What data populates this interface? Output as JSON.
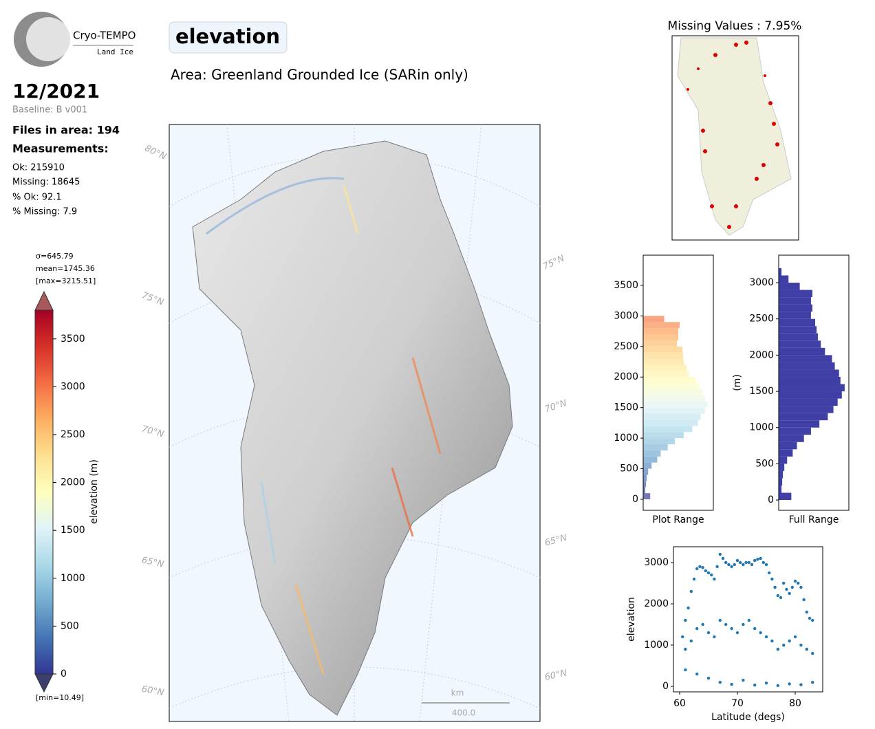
{
  "logo": {
    "name": "Cryo-TEMPO",
    "sub": "Land Ice"
  },
  "header": {
    "title": "elevation",
    "area": "Area: Greenland Grounded Ice (SARin only)",
    "date": "12/2021",
    "baseline": "Baseline: B v001"
  },
  "stats": {
    "files": "Files in area: 194",
    "measurements": "Measurements:",
    "lines": [
      "Ok: 215910",
      "Missing: 18645",
      "% Ok: 92.1",
      "% Missing: 7.9"
    ]
  },
  "colorbar": {
    "sigma": "σ=645.79",
    "mean": "mean=1745.36",
    "max": "[max=3215.51]",
    "min": "[min=10.49]",
    "label": "elevation (m)",
    "colormap": "RdYlBu_r",
    "ylim": [
      0,
      3800
    ],
    "yticks": [
      0,
      500,
      1000,
      1500,
      2000,
      2500,
      3000,
      3500
    ]
  },
  "map": {
    "lat_left": [
      "80°N",
      "75°N",
      "70°N",
      "65°N",
      "60°N"
    ],
    "lat_right": [
      "75°N",
      "70°N",
      "65°N",
      "60°N"
    ],
    "scale_unit": "km",
    "scale_value": "400.0"
  },
  "missing_map": {
    "title": "Missing Values : 7.95%"
  },
  "chart_data": [
    {
      "type": "histogram",
      "xlabel": "Plot Range",
      "colormap": "RdYlBu_r",
      "alpha": 0.7,
      "bins": [
        0,
        100,
        200,
        300,
        400,
        500,
        600,
        700,
        800,
        900,
        1000,
        1100,
        1200,
        1300,
        1400,
        1500,
        1600,
        1700,
        1800,
        1900,
        2000,
        2100,
        2200,
        2300,
        2400,
        2500,
        2600,
        2700,
        2800,
        2900,
        3000
      ],
      "values": [
        10,
        3,
        4,
        5,
        7,
        12,
        20,
        25,
        35,
        45,
        58,
        70,
        78,
        82,
        88,
        92,
        88,
        85,
        80,
        75,
        65,
        62,
        58,
        57,
        56,
        48,
        50,
        50,
        52,
        30
      ],
      "xlim": [
        0,
        100
      ],
      "ylim": [
        -180,
        3994
      ],
      "yticks": [
        0,
        500,
        1000,
        1500,
        2000,
        2500,
        3000,
        3500
      ]
    },
    {
      "type": "histogram",
      "xlabel": "Full Range",
      "ylabel": "(m)",
      "color": "#3f3fa6",
      "bins": [
        0,
        100,
        200,
        300,
        400,
        500,
        600,
        700,
        800,
        900,
        1000,
        1100,
        1200,
        1300,
        1400,
        1500,
        1600,
        1700,
        1800,
        1900,
        2000,
        2100,
        2200,
        2300,
        2400,
        2500,
        2600,
        2700,
        2800,
        2900,
        3000,
        3100,
        3200
      ],
      "values": [
        18,
        4,
        5,
        6,
        8,
        12,
        20,
        26,
        36,
        46,
        58,
        70,
        78,
        84,
        90,
        94,
        88,
        86,
        80,
        76,
        66,
        60,
        56,
        54,
        52,
        46,
        48,
        46,
        48,
        30,
        14,
        4
      ],
      "xlim": [
        0,
        100
      ],
      "ylim": [
        -142,
        3380
      ],
      "yticks": [
        0,
        500,
        1000,
        1500,
        2000,
        2500,
        3000
      ]
    },
    {
      "type": "scatter",
      "xlabel": "Latitude (degs)",
      "ylabel": "elevation",
      "color": "#1f77b4",
      "x": [
        60.5,
        61,
        61.5,
        62,
        62.5,
        63,
        63.5,
        64,
        64.5,
        65,
        65.5,
        66,
        66.5,
        67,
        67.5,
        68,
        68.5,
        69,
        69.5,
        70,
        70.5,
        71,
        71.5,
        72,
        72.5,
        73,
        73.5,
        74,
        74.5,
        75,
        75.5,
        76,
        76.5,
        77,
        77.5,
        78,
        78.5,
        79,
        79.5,
        80,
        80.5,
        81,
        81.5,
        82,
        82.5,
        83,
        61,
        62,
        63,
        64,
        65,
        66,
        67,
        68,
        69,
        70,
        71,
        72,
        73,
        74,
        75,
        76,
        77,
        78,
        79,
        80,
        81,
        82,
        83,
        61,
        63,
        65,
        67,
        69,
        71,
        73,
        75,
        77,
        79,
        81,
        83
      ],
      "y": [
        1200,
        1600,
        1900,
        2300,
        2600,
        2850,
        2900,
        2880,
        2800,
        2750,
        2700,
        2600,
        2900,
        3200,
        3100,
        3000,
        2950,
        2900,
        2950,
        3050,
        3000,
        2950,
        3000,
        3000,
        2950,
        3050,
        3080,
        3100,
        3000,
        2950,
        2750,
        2600,
        2400,
        2200,
        2150,
        2500,
        2350,
        2250,
        2400,
        2550,
        2500,
        2400,
        2100,
        1800,
        1650,
        1600,
        900,
        1100,
        1400,
        1500,
        1300,
        1200,
        1600,
        1500,
        1400,
        1300,
        1500,
        1600,
        1400,
        1300,
        1200,
        1100,
        900,
        1000,
        1100,
        1200,
        1000,
        900,
        800,
        400,
        300,
        200,
        100,
        50,
        150,
        30,
        80,
        20,
        60,
        40,
        100
      ],
      "xlim": [
        58.93,
        84.76
      ],
      "ylim": [
        -133,
        3383
      ],
      "xticks": [
        60,
        70,
        80
      ],
      "yticks": [
        0,
        1000,
        2000,
        3000
      ]
    }
  ]
}
